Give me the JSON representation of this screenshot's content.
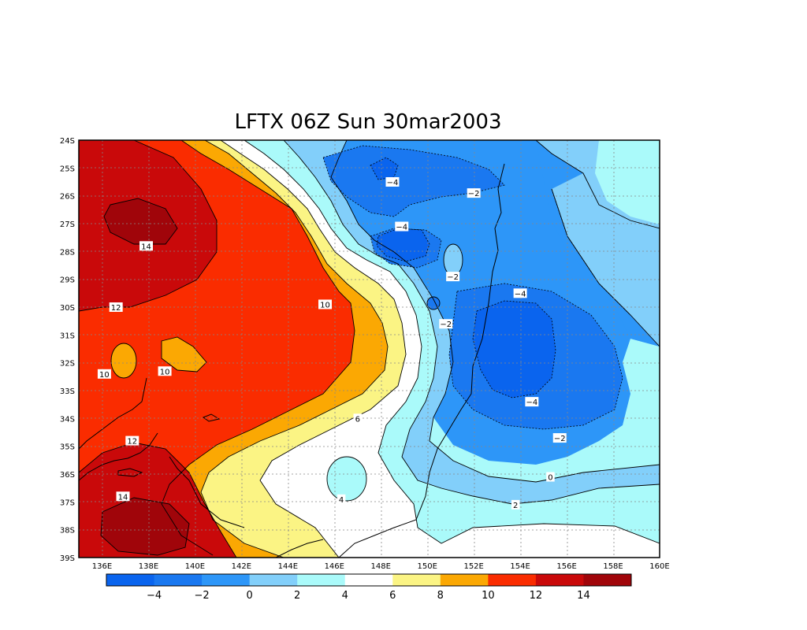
{
  "title": "LFTX 06Z Sun 30mar2003",
  "map": {
    "lat_labels": [
      "24S",
      "25S",
      "26S",
      "27S",
      "28S",
      "29S",
      "30S",
      "31S",
      "32S",
      "33S",
      "34S",
      "35S",
      "36S",
      "37S",
      "38S",
      "39S"
    ],
    "lon_labels": [
      "136E",
      "138E",
      "140E",
      "142E",
      "144E",
      "146E",
      "148E",
      "150E",
      "152E",
      "154E",
      "156E",
      "158E",
      "160E"
    ],
    "lon_range": [
      135,
      160
    ],
    "lat_range": [
      -39,
      -24
    ]
  },
  "contour_labels": [
    {
      "text": "-4",
      "lon": 148.5,
      "lat": -25.5
    },
    {
      "text": "-2",
      "lon": 152.0,
      "lat": -25.9
    },
    {
      "text": "-4",
      "lon": 148.9,
      "lat": -27.1
    },
    {
      "text": "14",
      "lon": 137.9,
      "lat": -27.8
    },
    {
      "text": "-2",
      "lon": 151.1,
      "lat": -28.9
    },
    {
      "text": "-4",
      "lon": 154.0,
      "lat": -29.5
    },
    {
      "text": "12",
      "lon": 136.6,
      "lat": -30.0
    },
    {
      "text": "10",
      "lon": 145.6,
      "lat": -29.9
    },
    {
      "text": "-2",
      "lon": 150.8,
      "lat": -30.6
    },
    {
      "text": "10",
      "lon": 136.1,
      "lat": -32.4
    },
    {
      "text": "10",
      "lon": 138.7,
      "lat": -32.3
    },
    {
      "text": "-4",
      "lon": 154.5,
      "lat": -33.4
    },
    {
      "text": "6",
      "lon": 147.0,
      "lat": -34.0
    },
    {
      "text": "12",
      "lon": 137.3,
      "lat": -34.8
    },
    {
      "text": "-2",
      "lon": 155.7,
      "lat": -34.7
    },
    {
      "text": "14",
      "lon": 136.9,
      "lat": -36.8
    },
    {
      "text": "4",
      "lon": 146.3,
      "lat": -36.9
    },
    {
      "text": "0",
      "lon": 155.3,
      "lat": -36.1
    },
    {
      "text": "2",
      "lon": 153.8,
      "lat": -37.1
    }
  ],
  "colorbar": {
    "labels": [
      "-4",
      "-2",
      "0",
      "2",
      "4",
      "6",
      "8",
      "10",
      "12",
      "14"
    ],
    "colors": [
      "#0a64ee",
      "#1a78f0",
      "#2d96f8",
      "#82cffa",
      "#aafafa",
      "#ffffff",
      "#fbf484",
      "#fba803",
      "#fa2c00",
      "#c9090a",
      "#a0050a"
    ]
  },
  "colors": {
    "c14": "#a0050a",
    "c12": "#c9090a",
    "c10": "#fa2c00",
    "c8": "#fba803",
    "c6": "#fbf484",
    "c4": "#ffffff",
    "c2": "#aafafa",
    "c0": "#82cffa",
    "cm2": "#2d96f8",
    "cm4": "#1a78f0",
    "cm6": "#0a64ee"
  }
}
